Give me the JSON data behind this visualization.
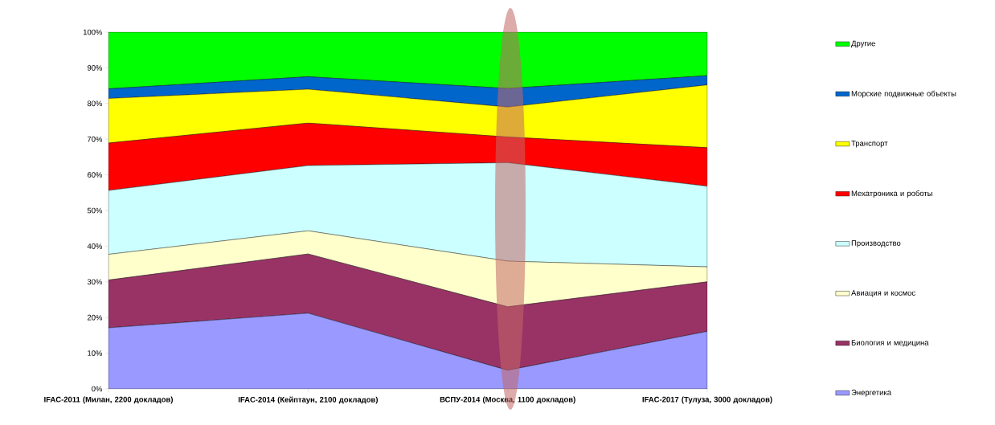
{
  "chart_data": {
    "type": "area",
    "stacked": true,
    "legend": "right",
    "categories": [
      "IFAC-2011 (Милан, 2200 докладов)",
      "IFAC-2014 (Кейптаун, 2100 докладов)",
      "ВСПУ-2014 (Москва, 1100 докладов)",
      "IFAC-2017 (Тулуза, 3000 докладов)"
    ],
    "ylim": [
      0,
      100
    ],
    "yticks": [
      {
        "value": 0,
        "label": "0%"
      },
      {
        "value": 10,
        "label": "10%"
      },
      {
        "value": 20,
        "label": "20%"
      },
      {
        "value": 30,
        "label": "30%"
      },
      {
        "value": 40,
        "label": "40%"
      },
      {
        "value": 50,
        "label": "50%"
      },
      {
        "value": 60,
        "label": "60%"
      },
      {
        "value": 70,
        "label": "70%"
      },
      {
        "value": 80,
        "label": "80%"
      },
      {
        "value": 90,
        "label": "90%"
      },
      {
        "value": 100,
        "label": "100%"
      }
    ],
    "series": [
      {
        "name": "Энергетика",
        "color": "#9999ff",
        "values": [
          17.1,
          21.2,
          5.2,
          16.1
        ]
      },
      {
        "name": "Биология и медицина",
        "color": "#993366",
        "values": [
          13.4,
          16.6,
          17.8,
          13.9
        ]
      },
      {
        "name": "Авиация и космос",
        "color": "#ffffcc",
        "values": [
          7.2,
          6.5,
          12.8,
          4.2
        ]
      },
      {
        "name": "Производство",
        "color": "#ccffff",
        "values": [
          17.9,
          18.3,
          27.6,
          22.6
        ]
      },
      {
        "name": "Мехатроника и роботы",
        "color": "#ff0000",
        "values": [
          13.3,
          11.9,
          7.2,
          10.8
        ]
      },
      {
        "name": "Транспорт",
        "color": "#ffff00",
        "values": [
          12.5,
          9.5,
          8.4,
          17.6
        ]
      },
      {
        "name": "Морские подвижные объекты",
        "color": "#0066cc",
        "values": [
          2.7,
          3.5,
          5.2,
          2.6
        ]
      },
      {
        "name": "Другие",
        "color": "#00ff00",
        "values": [
          15.9,
          12.5,
          15.8,
          12.2
        ]
      }
    ]
  }
}
